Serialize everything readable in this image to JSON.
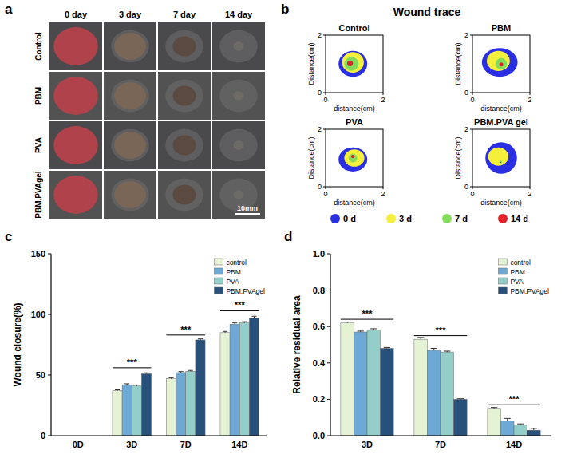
{
  "chart_data": [
    {
      "type": "image-grid",
      "panel_label": "a",
      "columns": [
        "0 day",
        "3 day",
        "7 day",
        "14 day"
      ],
      "rows": [
        "Control",
        "PBM",
        "PVA",
        "PBM.PVAgel"
      ],
      "scale_bar": "10mm"
    },
    {
      "type": "trace",
      "panel_label": "b",
      "title": "Wound trace",
      "x_label": "distance(cm)",
      "y_label": "Distance(cm)",
      "xlim": [
        0,
        2
      ],
      "ylim": [
        0,
        2
      ],
      "xticks": [
        0,
        2
      ],
      "yticks": [
        0,
        2
      ],
      "days": [
        {
          "name": "0 d",
          "color": "#2b2fe3"
        },
        {
          "name": "3 d",
          "color": "#f4ef3a"
        },
        {
          "name": "7 d",
          "color": "#84dc5c"
        },
        {
          "name": "14 d",
          "color": "#e3232b"
        }
      ],
      "plots": [
        {
          "title": "Control",
          "traces": [
            {
              "cx": 0.95,
              "cy": 1.0,
              "rx": 0.5,
              "ry": 0.45
            },
            {
              "cx": 0.95,
              "cy": 1.05,
              "rx": 0.38,
              "ry": 0.36
            },
            {
              "cx": 0.9,
              "cy": 1.0,
              "rx": 0.25,
              "ry": 0.24
            },
            {
              "cx": 0.85,
              "cy": 1.02,
              "rx": 0.1,
              "ry": 0.1
            }
          ]
        },
        {
          "title": "PBM",
          "traces": [
            {
              "cx": 0.95,
              "cy": 1.05,
              "rx": 0.62,
              "ry": 0.5
            },
            {
              "cx": 0.9,
              "cy": 1.1,
              "rx": 0.4,
              "ry": 0.35
            },
            {
              "cx": 1.0,
              "cy": 1.0,
              "rx": 0.2,
              "ry": 0.2
            },
            {
              "cx": 1.0,
              "cy": 0.98,
              "rx": 0.07,
              "ry": 0.07
            }
          ]
        },
        {
          "title": "PVA",
          "traces": [
            {
              "cx": 0.95,
              "cy": 0.95,
              "rx": 0.5,
              "ry": 0.42
            },
            {
              "cx": 1.0,
              "cy": 1.0,
              "rx": 0.35,
              "ry": 0.3
            },
            {
              "cx": 0.95,
              "cy": 1.0,
              "rx": 0.15,
              "ry": 0.15
            },
            {
              "cx": 0.95,
              "cy": 1.05,
              "rx": 0.06,
              "ry": 0.06
            }
          ]
        },
        {
          "title": "PBM.PVA gel",
          "traces": [
            {
              "cx": 1.0,
              "cy": 1.0,
              "rx": 0.55,
              "ry": 0.55
            },
            {
              "cx": 0.9,
              "cy": 1.05,
              "rx": 0.35,
              "ry": 0.32
            },
            {
              "cx": 0.98,
              "cy": 0.85,
              "rx": 0.05,
              "ry": 0.05
            },
            {
              "cx": 0.98,
              "cy": 0.85,
              "rx": 0.02,
              "ry": 0.02
            }
          ]
        }
      ]
    },
    {
      "type": "bar",
      "panel_label": "c",
      "y_label": "Wound closure(%)",
      "categories": [
        "0D",
        "3D",
        "7D",
        "14D"
      ],
      "series": [
        {
          "name": "control",
          "color": "#e6f2d4",
          "values": [
            0,
            37,
            47,
            85
          ],
          "errors": [
            0,
            0.8,
            0.8,
            1
          ]
        },
        {
          "name": "PBM",
          "color": "#6ea8d4",
          "values": [
            0,
            42,
            52,
            92
          ],
          "errors": [
            0,
            0.8,
            0.8,
            1
          ]
        },
        {
          "name": "PVA",
          "color": "#93cfc8",
          "values": [
            0,
            41,
            53,
            93
          ],
          "errors": [
            0,
            0.8,
            0.8,
            1
          ]
        },
        {
          "name": "PBM.PVAgel",
          "color": "#27507a",
          "values": [
            0,
            51,
            79,
            97
          ],
          "errors": [
            0,
            0.8,
            0.8,
            1.5
          ]
        }
      ],
      "ylim": [
        0,
        150
      ],
      "yticks": [
        0,
        50,
        100,
        150
      ],
      "grid": false,
      "legend": "top-right",
      "annotations": [
        {
          "category": "3D",
          "y": 56,
          "text": "***"
        },
        {
          "category": "7D",
          "y": 83,
          "text": "***"
        },
        {
          "category": "14D",
          "y": 103,
          "text": "***"
        }
      ]
    },
    {
      "type": "bar",
      "panel_label": "d",
      "y_label": "Relative residual area",
      "categories": [
        "3D",
        "7D",
        "14D"
      ],
      "series": [
        {
          "name": "control",
          "color": "#e6f2d4",
          "values": [
            0.62,
            0.53,
            0.15
          ],
          "errors": [
            0.005,
            0.01,
            0.005
          ]
        },
        {
          "name": "PBM",
          "color": "#6ea8d4",
          "values": [
            0.57,
            0.47,
            0.08
          ],
          "errors": [
            0.005,
            0.01,
            0.015
          ]
        },
        {
          "name": "PVA",
          "color": "#93cfc8",
          "values": [
            0.58,
            0.46,
            0.06
          ],
          "errors": [
            0.008,
            0.005,
            0.005
          ]
        },
        {
          "name": "PBM.PVAgel",
          "color": "#27507a",
          "values": [
            0.48,
            0.2,
            0.03
          ],
          "errors": [
            0.005,
            0.003,
            0.01
          ]
        }
      ],
      "ylim": [
        0,
        1.0
      ],
      "yticks": [
        {
          "value": 0,
          "label": "0.0"
        },
        {
          "value": 0.2,
          "label": "0.2"
        },
        {
          "value": 0.4,
          "label": "0.4"
        },
        {
          "value": 0.6,
          "label": "0.6"
        },
        {
          "value": 0.8,
          "label": "0.8"
        },
        {
          "value": 1.0,
          "label": "1.0"
        }
      ],
      "grid": false,
      "legend": "top-right",
      "annotations": [
        {
          "category": "3D",
          "y": 0.64,
          "text": "***"
        },
        {
          "category": "7D",
          "y": 0.55,
          "text": "***"
        },
        {
          "category": "14D",
          "y": 0.17,
          "text": "***"
        }
      ]
    }
  ]
}
